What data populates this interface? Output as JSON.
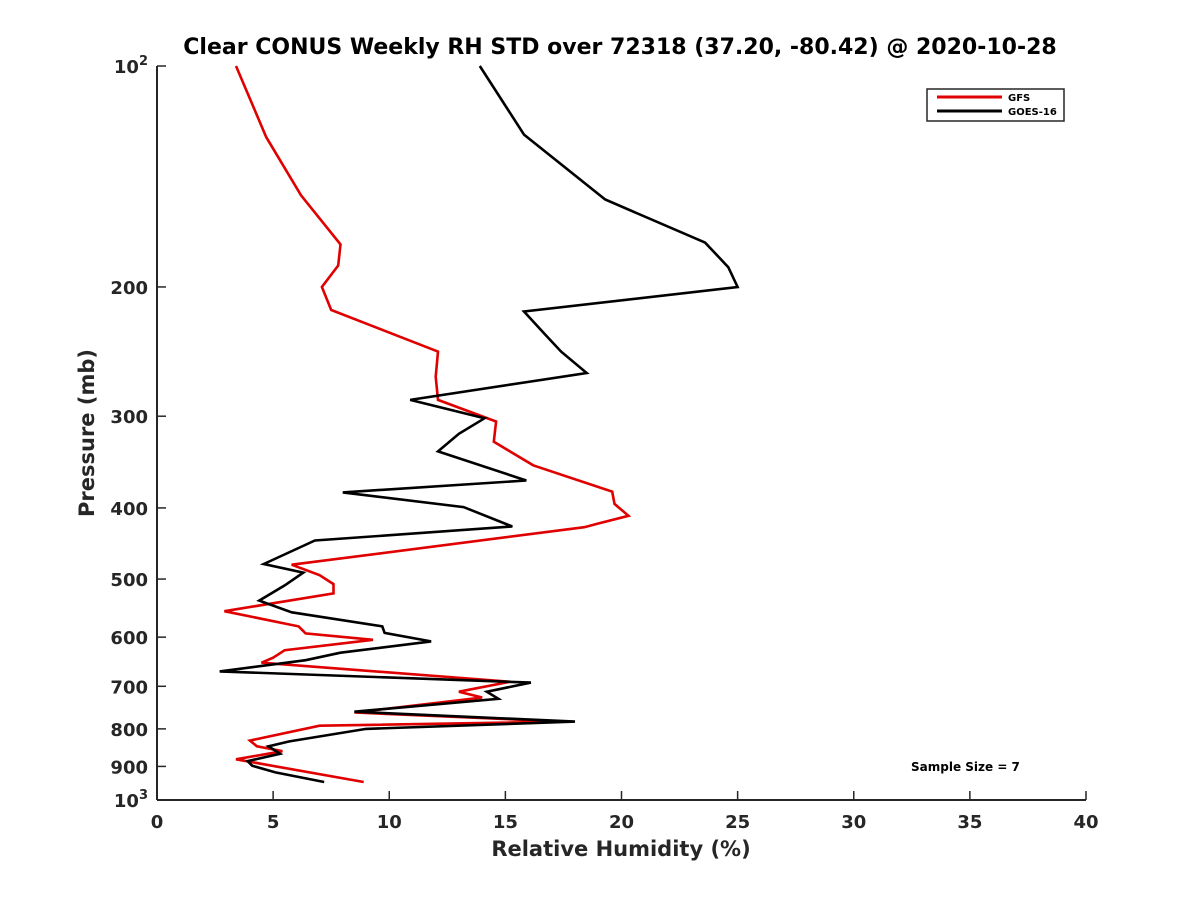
{
  "chart_data": {
    "type": "line",
    "title": "Clear CONUS Weekly RH STD over 72318 (37.20, -80.42) @ 2020-10-28",
    "xlabel": "Relative Humidity (%)",
    "ylabel": "Pressure (mb)",
    "xlim": [
      0,
      40
    ],
    "ylim": [
      100,
      1000
    ],
    "y_scale": "log",
    "y_reversed": true,
    "x_ticks": [
      "0",
      "5",
      "10",
      "15",
      "20",
      "25",
      "30",
      "35",
      "40"
    ],
    "y_ticks": [
      {
        "value": 100,
        "base": "10",
        "exp": "2"
      },
      {
        "value": 200,
        "label": "200"
      },
      {
        "value": 300,
        "label": "300"
      },
      {
        "value": 400,
        "label": "400"
      },
      {
        "value": 500,
        "label": "500"
      },
      {
        "value": 600,
        "label": "600"
      },
      {
        "value": 700,
        "label": "700"
      },
      {
        "value": 800,
        "label": "800"
      },
      {
        "value": 900,
        "label": "900"
      },
      {
        "value": 1000,
        "base": "10",
        "exp": "3"
      }
    ],
    "grid": false,
    "legend_position": "top-right",
    "annotation": "Sample Size = 7",
    "series": [
      {
        "name": "GFS",
        "color": "#e00000",
        "points": [
          [
            3.4,
            100
          ],
          [
            4.7,
            125
          ],
          [
            6.2,
            150
          ],
          [
            7.9,
            175
          ],
          [
            7.8,
            187
          ],
          [
            7.1,
            200
          ],
          [
            7.5,
            215
          ],
          [
            12.1,
            245
          ],
          [
            12.0,
            265
          ],
          [
            12.1,
            285
          ],
          [
            14.6,
            305
          ],
          [
            14.5,
            325
          ],
          [
            16.2,
            350
          ],
          [
            19.6,
            380
          ],
          [
            19.7,
            395
          ],
          [
            20.3,
            410
          ],
          [
            19.0,
            420
          ],
          [
            18.4,
            425
          ],
          [
            5.8,
            478
          ],
          [
            7.0,
            494
          ],
          [
            7.6,
            508
          ],
          [
            7.6,
            523
          ],
          [
            2.9,
            553
          ],
          [
            6.1,
            580
          ],
          [
            6.4,
            593
          ],
          [
            9.3,
            605
          ],
          [
            5.5,
            625
          ],
          [
            5.0,
            640
          ],
          [
            4.5,
            650
          ],
          [
            15.2,
            690
          ],
          [
            13.0,
            712
          ],
          [
            14.0,
            725
          ],
          [
            8.5,
            760
          ],
          [
            17.5,
            782
          ],
          [
            7.0,
            792
          ],
          [
            4.0,
            830
          ],
          [
            4.3,
            845
          ],
          [
            5.4,
            858
          ],
          [
            3.4,
            880
          ],
          [
            8.9,
            945
          ]
        ]
      },
      {
        "name": "GOES-16",
        "color": "#000000",
        "points": [
          [
            13.9,
            100
          ],
          [
            15.8,
            124
          ],
          [
            19.3,
            152
          ],
          [
            23.6,
            174
          ],
          [
            24.6,
            188
          ],
          [
            25.0,
            200
          ],
          [
            15.8,
            216
          ],
          [
            16.7,
            232
          ],
          [
            17.4,
            245
          ],
          [
            18.5,
            262
          ],
          [
            10.9,
            285
          ],
          [
            14.1,
            302
          ],
          [
            13.0,
            317
          ],
          [
            12.1,
            335
          ],
          [
            15.9,
            367
          ],
          [
            8.0,
            381
          ],
          [
            13.2,
            399
          ],
          [
            15.3,
            424
          ],
          [
            6.8,
            443
          ],
          [
            4.6,
            477
          ],
          [
            6.3,
            490
          ],
          [
            5.5,
            510
          ],
          [
            4.4,
            535
          ],
          [
            5.8,
            555
          ],
          [
            9.7,
            580
          ],
          [
            9.8,
            592
          ],
          [
            11.8,
            608
          ],
          [
            7.9,
            630
          ],
          [
            6.4,
            645
          ],
          [
            2.7,
            668
          ],
          [
            16.1,
            692
          ],
          [
            14.2,
            712
          ],
          [
            14.7,
            728
          ],
          [
            8.5,
            758
          ],
          [
            18.0,
            782
          ],
          [
            9.0,
            800
          ],
          [
            5.7,
            832
          ],
          [
            4.8,
            845
          ],
          [
            5.3,
            865
          ],
          [
            3.9,
            885
          ],
          [
            4.1,
            898
          ],
          [
            5.1,
            917
          ],
          [
            7.2,
            945
          ]
        ]
      }
    ]
  }
}
